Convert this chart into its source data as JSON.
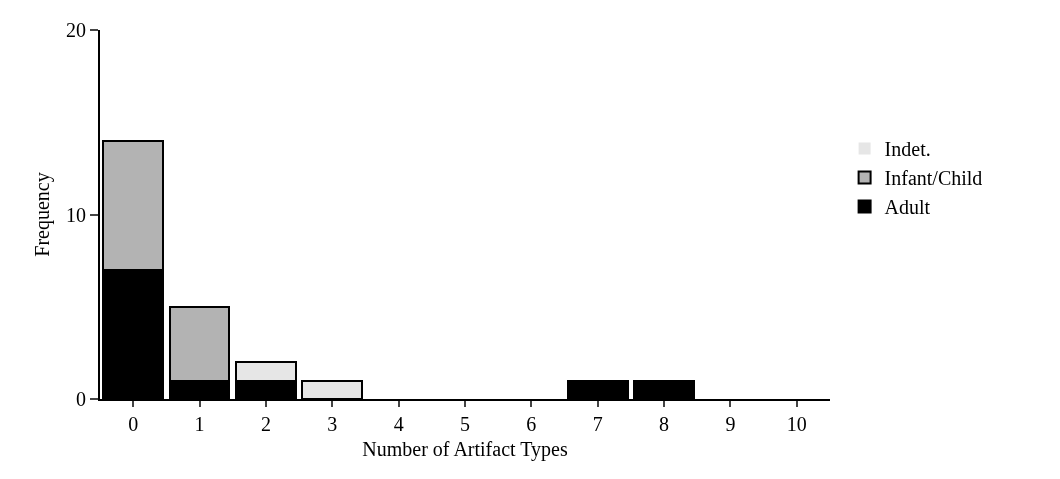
{
  "chart_data": {
    "type": "bar",
    "stacked": true,
    "xlabel": "Number of Artifact Types",
    "ylabel": "Frequency",
    "categories": [
      "0",
      "1",
      "2",
      "3",
      "4",
      "5",
      "6",
      "7",
      "8",
      "9",
      "10"
    ],
    "series": [
      {
        "name": "Adult",
        "color": "#000000",
        "values": [
          7,
          1,
          1,
          0,
          0,
          0,
          0,
          1,
          1,
          0,
          0
        ]
      },
      {
        "name": "Infant/Child",
        "color": "#b3b3b3",
        "values": [
          7,
          4,
          0,
          0,
          0,
          0,
          0,
          0,
          0,
          0,
          0
        ]
      },
      {
        "name": "Indet.",
        "color": "#e6e6e6",
        "values": [
          0,
          0,
          1,
          1,
          0,
          0,
          0,
          0,
          0,
          0,
          0
        ]
      }
    ],
    "ylim": [
      0,
      20
    ],
    "yticks": [
      0,
      10,
      20
    ],
    "grid": false,
    "legend": "right"
  }
}
